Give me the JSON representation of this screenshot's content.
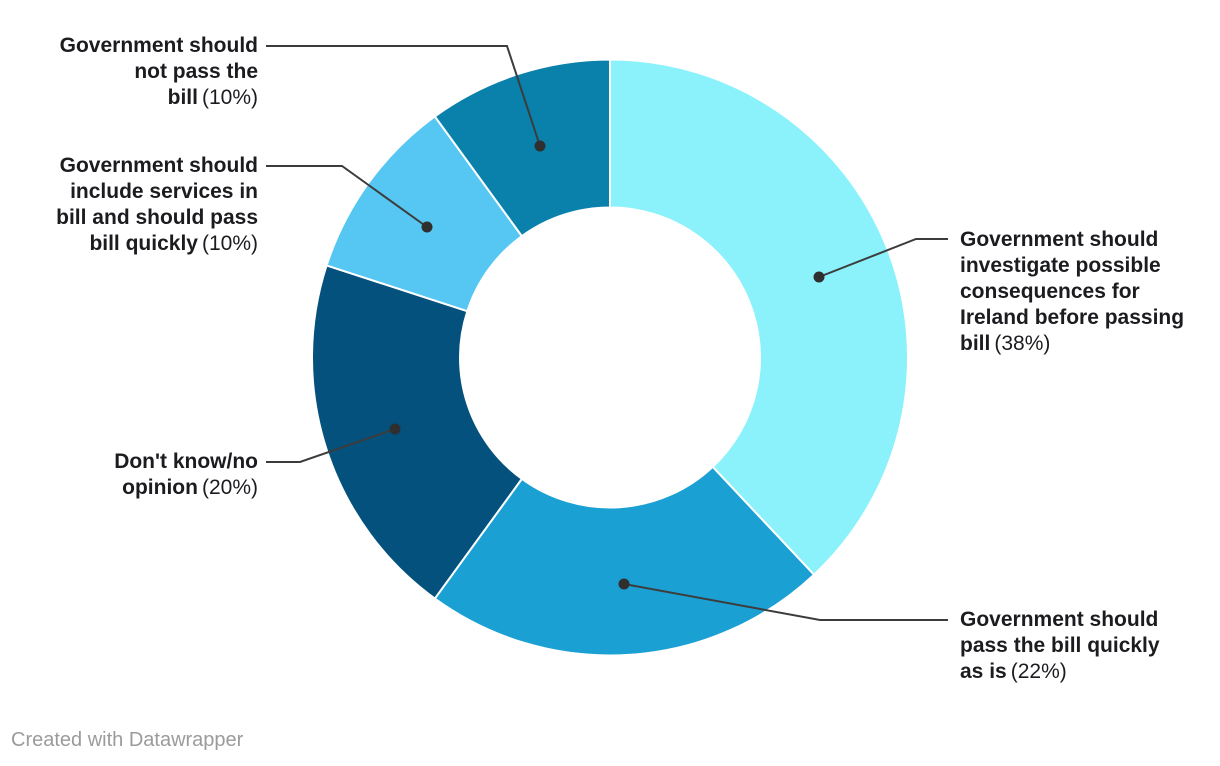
{
  "footer": {
    "credit": "Created with Datawrapper"
  },
  "chart_data": {
    "type": "pie",
    "subtype": "donut",
    "title": "",
    "unit": "%",
    "direction": "clockwise",
    "start_angle_deg": 0,
    "center": [
      610,
      357.5
    ],
    "outer_radius": 298,
    "inner_radius": 150,
    "slice_stroke_color": "#ffffff",
    "leader_line_color": "#3c3c3c",
    "label_text_color": "#1c1c20",
    "legend_position": "callout-labels",
    "series": [
      {
        "label": "Government should investigate possible consequences for Ireland before passing bill",
        "value": 38,
        "pct_text": "(38%)",
        "color": "#8bf2fc"
      },
      {
        "label": "Government should pass the bill quickly as is",
        "value": 22,
        "pct_text": "(22%)",
        "color": "#1aa0d3"
      },
      {
        "label": "Don't know/no opinion",
        "value": 20,
        "pct_text": "(20%)",
        "color": "#03517c"
      },
      {
        "label": "Government should include services in bill and should pass bill quickly",
        "value": 10,
        "pct_text": "(10%)",
        "color": "#56c7f2"
      },
      {
        "label": "Government should not pass the bill",
        "value": 10,
        "pct_text": "(10%)",
        "color": "#0981ab"
      }
    ]
  }
}
